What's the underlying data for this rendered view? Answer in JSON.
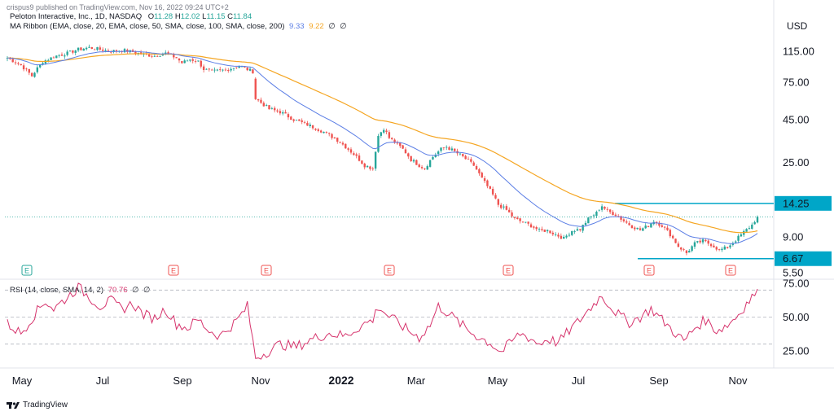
{
  "header": {
    "published": "crispus9 published on TradingView.com, Nov 16, 2022 09:24 UTC+2",
    "symbol": "Peloton Interactive, Inc., 1D, NASDAQ",
    "ohlc": [
      {
        "k": "O",
        "v": "11.28"
      },
      {
        "k": "H",
        "v": "12.02"
      },
      {
        "k": "L",
        "v": "11.15"
      },
      {
        "k": "C",
        "v": "11.84"
      }
    ],
    "ribbon_label": "MA Ribbon (EMA, close, 20, EMA, close, 50, SMA, close, 100, SMA, close, 200)",
    "ribbon_values": [
      "9.33",
      "9.22",
      "∅",
      "∅"
    ],
    "rsi_label": "RSI (14, close, SMA, 14, 2)",
    "rsi_values": [
      "70.76",
      "∅",
      "∅"
    ]
  },
  "currency": "USD",
  "footer": {
    "brand": "TradingView"
  },
  "colors": {
    "up": "#26a69a",
    "down": "#ef5350",
    "ema20": "#5b7ee5",
    "ema50": "#f5a623",
    "rsi": "#d6336c",
    "level": "#00a6c8",
    "grid": "#f0f3fa",
    "axis_text": "#131722"
  },
  "chart_data": [
    {
      "type": "candlestick",
      "title": "Peloton Interactive, Inc., 1D, NASDAQ",
      "y_scale": "log",
      "y_ticks": [
        5.5,
        9.0,
        25.0,
        45.0,
        75.0,
        115.0
      ],
      "y_tick_labels": [
        "5.50",
        "9.00",
        "25.00",
        "45.00",
        "75.00",
        "115.00"
      ],
      "x_labels": [
        "May",
        "Jul",
        "Sep",
        "Nov",
        "2022",
        "Mar",
        "May",
        "Jul",
        "Sep",
        "Nov"
      ],
      "anchor_closes": [
        [
          0,
          105
        ],
        [
          5,
          95
        ],
        [
          9,
          82
        ],
        [
          13,
          100
        ],
        [
          18,
          108
        ],
        [
          22,
          112
        ],
        [
          26,
          118
        ],
        [
          30,
          121
        ],
        [
          34,
          118
        ],
        [
          38,
          115
        ],
        [
          42,
          117
        ],
        [
          46,
          114
        ],
        [
          50,
          110
        ],
        [
          54,
          108
        ],
        [
          58,
          112
        ],
        [
          62,
          105
        ],
        [
          64,
          98
        ],
        [
          67,
          103
        ],
        [
          70,
          100
        ],
        [
          72,
          90
        ],
        [
          75,
          87
        ],
        [
          80,
          89
        ],
        [
          85,
          94
        ],
        [
          90,
          87
        ],
        [
          91,
          60
        ],
        [
          96,
          52
        ],
        [
          100,
          50
        ],
        [
          105,
          45
        ],
        [
          110,
          42
        ],
        [
          116,
          38
        ],
        [
          121,
          34
        ],
        [
          124,
          31
        ],
        [
          127,
          28
        ],
        [
          131,
          24
        ],
        [
          134,
          23
        ],
        [
          136,
          36
        ],
        [
          138,
          40
        ],
        [
          140,
          35
        ],
        [
          143,
          32
        ],
        [
          145,
          30
        ],
        [
          148,
          26
        ],
        [
          151,
          24
        ],
        [
          153,
          23
        ],
        [
          156,
          27
        ],
        [
          159,
          30
        ],
        [
          161,
          31
        ],
        [
          164,
          29
        ],
        [
          167,
          27
        ],
        [
          171,
          24
        ],
        [
          174,
          20
        ],
        [
          177,
          17
        ],
        [
          180,
          14
        ],
        [
          183,
          13
        ],
        [
          186,
          11.5
        ],
        [
          189,
          11
        ],
        [
          192,
          10.5
        ],
        [
          195,
          9.8
        ],
        [
          198,
          9.8
        ],
        [
          201,
          9.3
        ],
        [
          204,
          8.8
        ],
        [
          207,
          9.8
        ],
        [
          210,
          10
        ],
        [
          213,
          11.5
        ],
        [
          216,
          12.5
        ],
        [
          218,
          13.8
        ],
        [
          220,
          12.8
        ],
        [
          223,
          12.2
        ],
        [
          226,
          11.2
        ],
        [
          229,
          10.4
        ],
        [
          232,
          9.9
        ],
        [
          235,
          10.5
        ],
        [
          237,
          11.2
        ],
        [
          240,
          10.5
        ],
        [
          243,
          9.3
        ],
        [
          246,
          7.9
        ],
        [
          249,
          7.2
        ],
        [
          252,
          8.2
        ],
        [
          255,
          8.5
        ],
        [
          258,
          8.1
        ],
        [
          261,
          7.5
        ],
        [
          264,
          7.8
        ],
        [
          267,
          8.6
        ],
        [
          270,
          9.6
        ],
        [
          273,
          10.6
        ],
        [
          275,
          11.84
        ]
      ],
      "series": [
        {
          "name": "EMA 20",
          "last": 9.33
        },
        {
          "name": "EMA 50",
          "last": 9.22
        }
      ],
      "levels": [
        {
          "label": "14.25",
          "value": 14.25
        },
        {
          "label": "6.67",
          "value": 6.67
        }
      ],
      "last_close": 11.84,
      "earnings_markers": [
        "E",
        "E",
        "E",
        "E",
        "E",
        "E",
        "E"
      ]
    },
    {
      "type": "line",
      "title": "RSI (14, close, SMA, 14, 2)",
      "y_ticks": [
        25,
        50,
        75
      ],
      "y_tick_labels": [
        "25.00",
        "50.00",
        "75.00"
      ],
      "bands": [
        30,
        50,
        70
      ],
      "anchor_values": [
        [
          0,
          45
        ],
        [
          5,
          38
        ],
        [
          10,
          52
        ],
        [
          14,
          62
        ],
        [
          17,
          56
        ],
        [
          21,
          63
        ],
        [
          26,
          72
        ],
        [
          30,
          65
        ],
        [
          34,
          58
        ],
        [
          38,
          62
        ],
        [
          42,
          56
        ],
        [
          46,
          60
        ],
        [
          50,
          52
        ],
        [
          54,
          49
        ],
        [
          58,
          56
        ],
        [
          62,
          45
        ],
        [
          66,
          42
        ],
        [
          70,
          48
        ],
        [
          74,
          40
        ],
        [
          78,
          36
        ],
        [
          84,
          47
        ],
        [
          88,
          58
        ],
        [
          91,
          20
        ],
        [
          95,
          24
        ],
        [
          100,
          30
        ],
        [
          106,
          28
        ],
        [
          112,
          34
        ],
        [
          118,
          38
        ],
        [
          124,
          36
        ],
        [
          130,
          44
        ],
        [
          134,
          48
        ],
        [
          136,
          58
        ],
        [
          139,
          52
        ],
        [
          143,
          46
        ],
        [
          147,
          40
        ],
        [
          151,
          35
        ],
        [
          155,
          44
        ],
        [
          158,
          58
        ],
        [
          161,
          54
        ],
        [
          165,
          47
        ],
        [
          169,
          40
        ],
        [
          173,
          35
        ],
        [
          177,
          31
        ],
        [
          181,
          24
        ],
        [
          185,
          32
        ],
        [
          188,
          38
        ],
        [
          192,
          34
        ],
        [
          195,
          30
        ],
        [
          198,
          34
        ],
        [
          202,
          31
        ],
        [
          206,
          40
        ],
        [
          209,
          46
        ],
        [
          213,
          55
        ],
        [
          216,
          62
        ],
        [
          218,
          66
        ],
        [
          221,
          58
        ],
        [
          224,
          52
        ],
        [
          228,
          46
        ],
        [
          232,
          50
        ],
        [
          236,
          56
        ],
        [
          240,
          48
        ],
        [
          244,
          40
        ],
        [
          248,
          32
        ],
        [
          252,
          42
        ],
        [
          256,
          48
        ],
        [
          260,
          40
        ],
        [
          264,
          44
        ],
        [
          268,
          52
        ],
        [
          271,
          60
        ],
        [
          274,
          67
        ],
        [
          275,
          70.76
        ]
      ],
      "last": 70.76
    }
  ]
}
